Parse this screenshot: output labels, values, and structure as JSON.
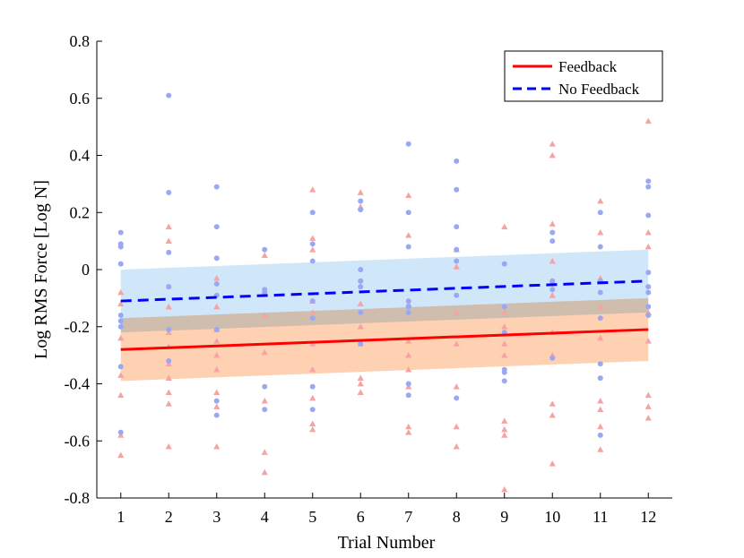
{
  "chart_data": {
    "type": "scatter",
    "title": "",
    "xlabel": "Trial Number",
    "ylabel": "Log RMS Force [Log N]",
    "xlim": [
      0.5,
      12.5
    ],
    "ylim": [
      -0.8,
      0.8
    ],
    "x_ticks": [
      1,
      2,
      3,
      4,
      5,
      6,
      7,
      8,
      9,
      10,
      11,
      12
    ],
    "y_ticks": [
      -0.8,
      -0.6,
      -0.4,
      -0.2,
      0,
      0.2,
      0.4,
      0.6,
      0.8
    ],
    "y_tick_labels": [
      "-0.8",
      "-0.6",
      "-0.4",
      "-0.2",
      "0",
      "0.2",
      "0.4",
      "0.6",
      "0.8"
    ],
    "legend": {
      "position": "top-right",
      "entries": [
        {
          "label": "Feedback",
          "series": "feedback"
        },
        {
          "label": "No Feedback",
          "series": "no_feedback"
        }
      ]
    },
    "series": [
      {
        "name": "Feedback",
        "key": "feedback",
        "color": "#ff0000",
        "band_color": "#ffc9a6",
        "marker": "triangle",
        "marker_color": "#f6a3a3",
        "line_style": "solid",
        "fit": {
          "x": [
            1,
            12
          ],
          "y": [
            -0.28,
            -0.21
          ]
        },
        "band": {
          "x": [
            1,
            12
          ],
          "lower": [
            -0.39,
            -0.32
          ],
          "upper": [
            -0.17,
            -0.1
          ]
        },
        "points": [
          [
            1,
            -0.08
          ],
          [
            1,
            -0.12
          ],
          [
            1,
            -0.24
          ],
          [
            1,
            -0.37
          ],
          [
            1,
            -0.44
          ],
          [
            1,
            -0.58
          ],
          [
            1,
            -0.65
          ],
          [
            2,
            0.15
          ],
          [
            2,
            0.1
          ],
          [
            2,
            -0.13
          ],
          [
            2,
            -0.22
          ],
          [
            2,
            -0.27
          ],
          [
            2,
            -0.33
          ],
          [
            2,
            -0.38
          ],
          [
            2,
            -0.43
          ],
          [
            2,
            -0.47
          ],
          [
            2,
            -0.62
          ],
          [
            3,
            -0.03
          ],
          [
            3,
            -0.13
          ],
          [
            3,
            -0.21
          ],
          [
            3,
            -0.25
          ],
          [
            3,
            -0.3
          ],
          [
            3,
            -0.35
          ],
          [
            3,
            -0.43
          ],
          [
            3,
            -0.48
          ],
          [
            3,
            -0.62
          ],
          [
            4,
            0.05
          ],
          [
            4,
            -0.08
          ],
          [
            4,
            -0.16
          ],
          [
            4,
            -0.29
          ],
          [
            4,
            -0.46
          ],
          [
            4,
            -0.64
          ],
          [
            4,
            -0.71
          ],
          [
            5,
            0.28
          ],
          [
            5,
            0.11
          ],
          [
            5,
            0.07
          ],
          [
            5,
            -0.11
          ],
          [
            5,
            -0.15
          ],
          [
            5,
            -0.26
          ],
          [
            5,
            -0.35
          ],
          [
            5,
            -0.45
          ],
          [
            5,
            -0.54
          ],
          [
            5,
            -0.56
          ],
          [
            6,
            0.27
          ],
          [
            6,
            0.22
          ],
          [
            6,
            -0.12
          ],
          [
            6,
            -0.2
          ],
          [
            6,
            -0.26
          ],
          [
            6,
            -0.38
          ],
          [
            6,
            -0.4
          ],
          [
            6,
            -0.43
          ],
          [
            7,
            0.26
          ],
          [
            7,
            0.12
          ],
          [
            7,
            -0.12
          ],
          [
            7,
            -0.25
          ],
          [
            7,
            -0.3
          ],
          [
            7,
            -0.35
          ],
          [
            7,
            -0.41
          ],
          [
            7,
            -0.55
          ],
          [
            7,
            -0.57
          ],
          [
            8,
            0.07
          ],
          [
            8,
            0.01
          ],
          [
            8,
            -0.15
          ],
          [
            8,
            -0.26
          ],
          [
            8,
            -0.41
          ],
          [
            8,
            -0.55
          ],
          [
            8,
            -0.62
          ],
          [
            9,
            0.15
          ],
          [
            9,
            -0.15
          ],
          [
            9,
            -0.2
          ],
          [
            9,
            -0.26
          ],
          [
            9,
            -0.3
          ],
          [
            9,
            -0.53
          ],
          [
            9,
            -0.56
          ],
          [
            9,
            -0.58
          ],
          [
            9,
            -0.77
          ],
          [
            10,
            0.44
          ],
          [
            10,
            0.4
          ],
          [
            10,
            0.16
          ],
          [
            10,
            0.03
          ],
          [
            10,
            -0.09
          ],
          [
            10,
            -0.22
          ],
          [
            10,
            -0.3
          ],
          [
            10,
            -0.47
          ],
          [
            10,
            -0.51
          ],
          [
            10,
            -0.68
          ],
          [
            11,
            0.24
          ],
          [
            11,
            0.13
          ],
          [
            11,
            -0.03
          ],
          [
            11,
            -0.13
          ],
          [
            11,
            -0.24
          ],
          [
            11,
            -0.46
          ],
          [
            11,
            -0.49
          ],
          [
            11,
            -0.55
          ],
          [
            11,
            -0.63
          ],
          [
            12,
            0.52
          ],
          [
            12,
            0.13
          ],
          [
            12,
            0.08
          ],
          [
            12,
            -0.15
          ],
          [
            12,
            -0.25
          ],
          [
            12,
            -0.44
          ],
          [
            12,
            -0.48
          ],
          [
            12,
            -0.52
          ]
        ]
      },
      {
        "name": "No Feedback",
        "key": "no_feedback",
        "color": "#0000ff",
        "band_color": "#c7e3f7",
        "marker": "circle",
        "marker_color": "#9aa8f4",
        "line_style": "dashed",
        "fit": {
          "x": [
            1,
            12
          ],
          "y": [
            -0.11,
            -0.04
          ]
        },
        "band": {
          "x": [
            1,
            12
          ],
          "lower": [
            -0.22,
            -0.15
          ],
          "upper": [
            0.0,
            0.07
          ]
        },
        "points": [
          [
            1,
            0.13
          ],
          [
            1,
            0.09
          ],
          [
            1,
            0.08
          ],
          [
            1,
            0.02
          ],
          [
            1,
            -0.16
          ],
          [
            1,
            -0.18
          ],
          [
            1,
            -0.2
          ],
          [
            1,
            -0.34
          ],
          [
            1,
            -0.57
          ],
          [
            2,
            0.61
          ],
          [
            2,
            0.27
          ],
          [
            2,
            0.06
          ],
          [
            2,
            -0.06
          ],
          [
            2,
            -0.21
          ],
          [
            2,
            -0.32
          ],
          [
            3,
            0.29
          ],
          [
            3,
            0.15
          ],
          [
            3,
            0.04
          ],
          [
            3,
            -0.05
          ],
          [
            3,
            -0.09
          ],
          [
            3,
            -0.21
          ],
          [
            3,
            -0.46
          ],
          [
            3,
            -0.51
          ],
          [
            4,
            0.07
          ],
          [
            4,
            -0.07
          ],
          [
            4,
            -0.08
          ],
          [
            4,
            -0.41
          ],
          [
            4,
            -0.49
          ],
          [
            5,
            0.2
          ],
          [
            5,
            0.09
          ],
          [
            5,
            0.03
          ],
          [
            5,
            -0.11
          ],
          [
            5,
            -0.17
          ],
          [
            5,
            -0.41
          ],
          [
            5,
            -0.49
          ],
          [
            6,
            0.24
          ],
          [
            6,
            0.21
          ],
          [
            6,
            0.0
          ],
          [
            6,
            -0.04
          ],
          [
            6,
            -0.06
          ],
          [
            6,
            -0.15
          ],
          [
            6,
            -0.26
          ],
          [
            7,
            0.44
          ],
          [
            7,
            0.2
          ],
          [
            7,
            0.08
          ],
          [
            7,
            -0.11
          ],
          [
            7,
            -0.13
          ],
          [
            7,
            -0.15
          ],
          [
            7,
            -0.4
          ],
          [
            7,
            -0.44
          ],
          [
            8,
            0.38
          ],
          [
            8,
            0.28
          ],
          [
            8,
            0.15
          ],
          [
            8,
            0.07
          ],
          [
            8,
            0.03
          ],
          [
            8,
            -0.09
          ],
          [
            8,
            -0.45
          ],
          [
            9,
            0.02
          ],
          [
            9,
            -0.13
          ],
          [
            9,
            -0.22
          ],
          [
            9,
            -0.35
          ],
          [
            9,
            -0.36
          ],
          [
            9,
            -0.39
          ],
          [
            10,
            0.13
          ],
          [
            10,
            0.1
          ],
          [
            10,
            -0.04
          ],
          [
            10,
            -0.05
          ],
          [
            10,
            -0.07
          ],
          [
            10,
            -0.31
          ],
          [
            11,
            0.2
          ],
          [
            11,
            0.08
          ],
          [
            11,
            -0.04
          ],
          [
            11,
            -0.08
          ],
          [
            11,
            -0.17
          ],
          [
            11,
            -0.33
          ],
          [
            11,
            -0.38
          ],
          [
            11,
            -0.58
          ],
          [
            12,
            0.31
          ],
          [
            12,
            0.29
          ],
          [
            12,
            0.19
          ],
          [
            12,
            -0.01
          ],
          [
            12,
            -0.06
          ],
          [
            12,
            -0.08
          ],
          [
            12,
            -0.13
          ],
          [
            12,
            -0.16
          ]
        ]
      }
    ]
  }
}
